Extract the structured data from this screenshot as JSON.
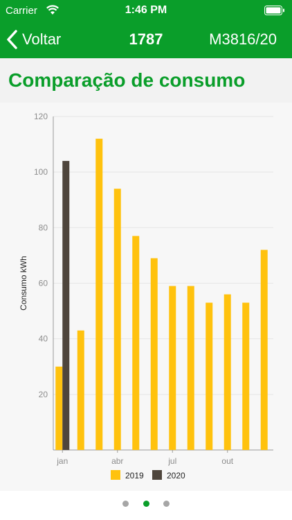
{
  "status_bar": {
    "carrier": "Carrier",
    "time": "1:46 PM"
  },
  "nav": {
    "back_label": "Voltar",
    "title": "1787",
    "right_label": "M3816/20"
  },
  "page_title": "Comparação de consumo",
  "colors": {
    "green": "#0a9e2a",
    "series_2019": "#ffc20e",
    "series_2020": "#4e453c"
  },
  "chart_data": {
    "type": "bar",
    "ylabel": "Consumo kWh",
    "ylim": [
      0,
      120
    ],
    "yticks": [
      20,
      40,
      60,
      80,
      100,
      120
    ],
    "x_tick_labels": [
      {
        "label": "jan",
        "month": 0
      },
      {
        "label": "abr",
        "month": 3
      },
      {
        "label": "jul",
        "month": 6
      },
      {
        "label": "out",
        "month": 9
      }
    ],
    "series": [
      {
        "name": "2019",
        "color": "#ffc20e",
        "values": [
          30,
          43,
          112,
          94,
          77,
          69,
          59,
          59,
          53,
          56,
          53,
          72
        ]
      },
      {
        "name": "2020",
        "color": "#4e453c",
        "values": [
          104
        ]
      }
    ],
    "legend_position": "bottom-center"
  },
  "pager": {
    "count": 3,
    "active": 1
  }
}
